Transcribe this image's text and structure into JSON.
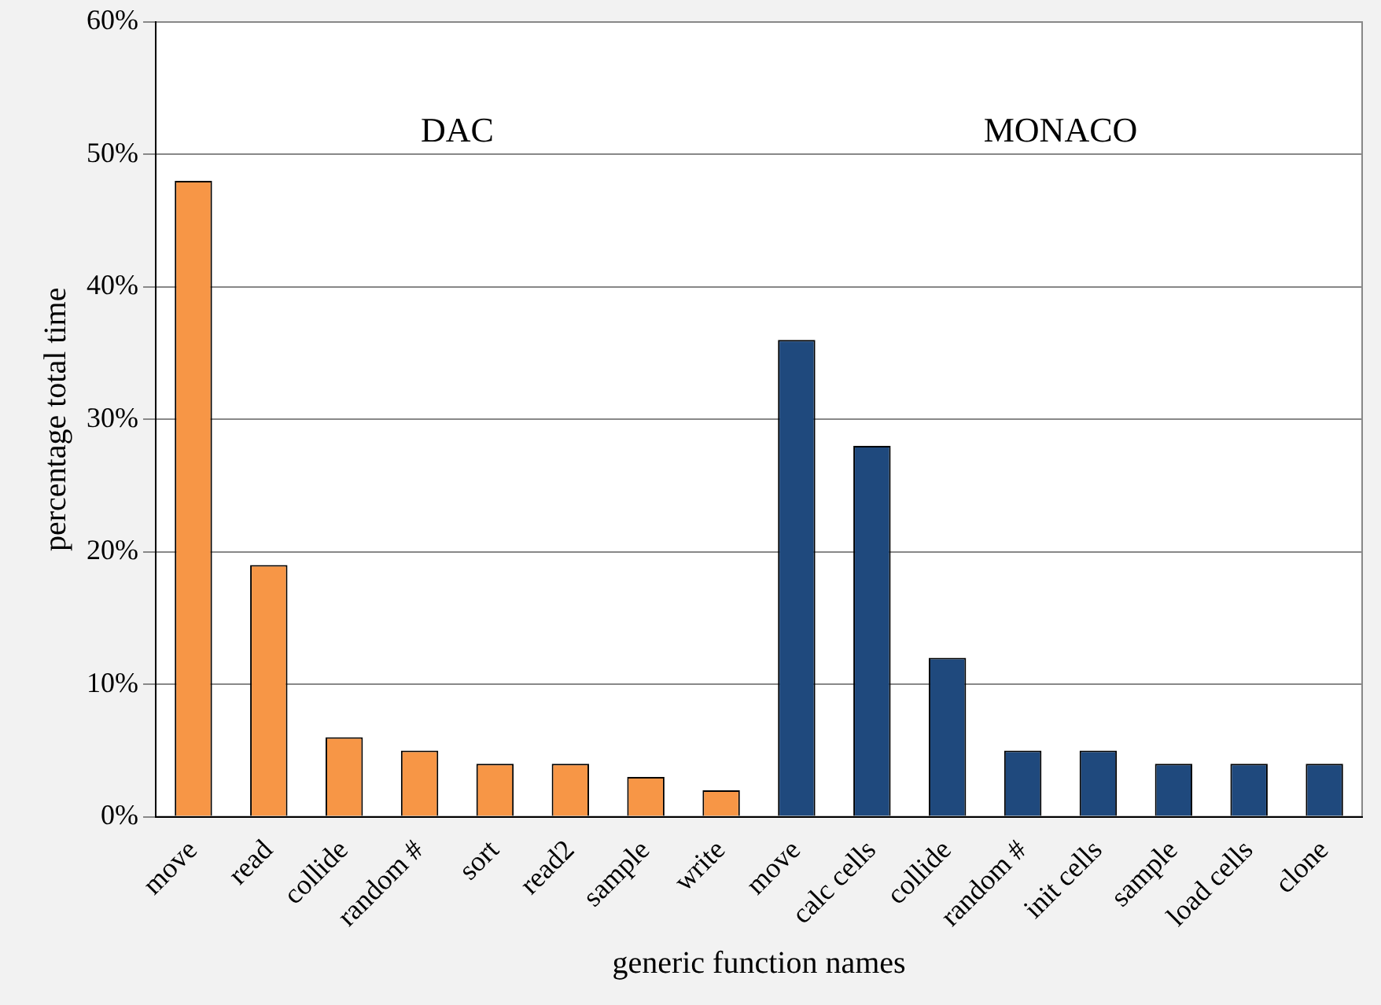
{
  "chart_data": {
    "type": "bar",
    "xlabel": "generic function names",
    "ylabel": "percentage total time",
    "categories": [
      "move",
      "read",
      "collide",
      "random #",
      "sort",
      "read2",
      "sample",
      "write",
      "move",
      "calc cells",
      "collide",
      "random #",
      "init cells",
      "sample",
      "load cells",
      "clone"
    ],
    "series": [
      {
        "color": "#f79646",
        "values": [
          48,
          19,
          6,
          5,
          4,
          4,
          3,
          2,
          null,
          null,
          null,
          null,
          null,
          null,
          null,
          null
        ]
      },
      {
        "color": "#1f497d",
        "values": [
          null,
          null,
          null,
          null,
          null,
          null,
          null,
          null,
          36,
          28,
          12,
          5,
          5,
          4,
          4,
          4
        ]
      }
    ],
    "ylim": [
      0,
      60
    ],
    "yticks": [
      {
        "value": 0,
        "label": "0%"
      },
      {
        "value": 10,
        "label": "10%"
      },
      {
        "value": 20,
        "label": "20%"
      },
      {
        "value": 30,
        "label": "30%"
      },
      {
        "value": 40,
        "label": "40%"
      },
      {
        "value": 50,
        "label": "50%"
      },
      {
        "value": 60,
        "label": "60%"
      }
    ],
    "annotations": [
      "DAC",
      "MONACO"
    ],
    "grid": "y",
    "legend": false
  }
}
